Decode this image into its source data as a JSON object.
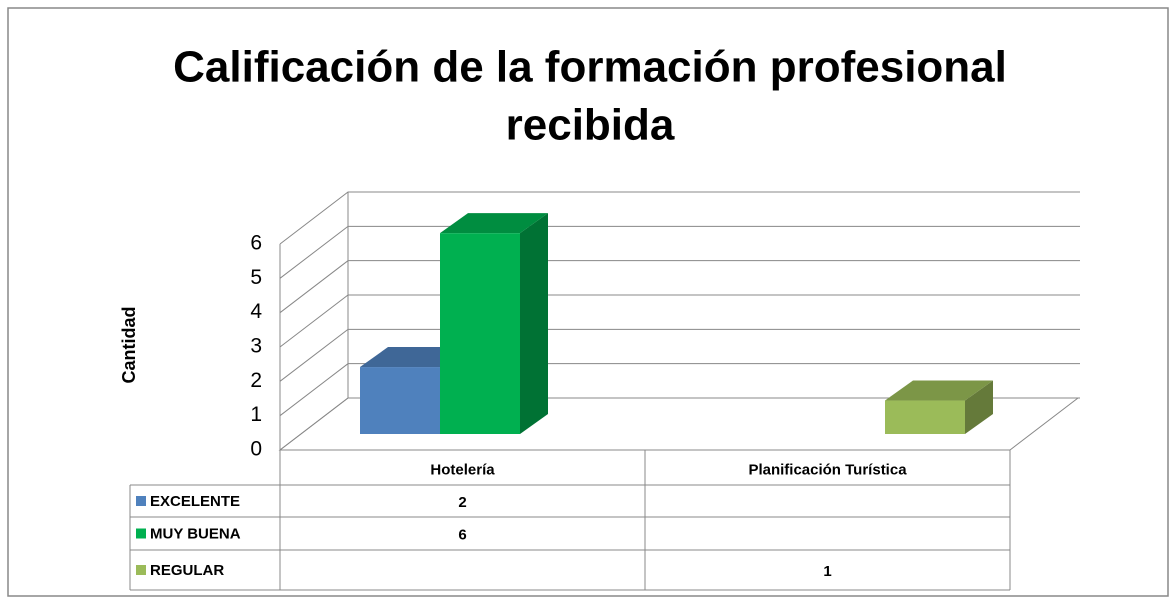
{
  "chart_data": {
    "type": "bar3d",
    "title": [
      "Calificación de la formación profesional",
      "recibida"
    ],
    "y_label": "Cantidad",
    "categories": [
      "Hotelería",
      "Planificación Turística"
    ],
    "series": [
      {
        "name": "EXCELENTE",
        "color": "#4f81bd",
        "values": [
          2,
          null
        ]
      },
      {
        "name": "MUY BUENA",
        "color": "#00b050",
        "values": [
          6,
          null
        ]
      },
      {
        "name": "REGULAR",
        "color": "#9bbb59",
        "values": [
          null,
          1
        ]
      }
    ],
    "ylim": [
      0,
      6
    ],
    "yticks": [
      0,
      1,
      2,
      3,
      4,
      5,
      6
    ],
    "grid": true,
    "data_table": true
  }
}
